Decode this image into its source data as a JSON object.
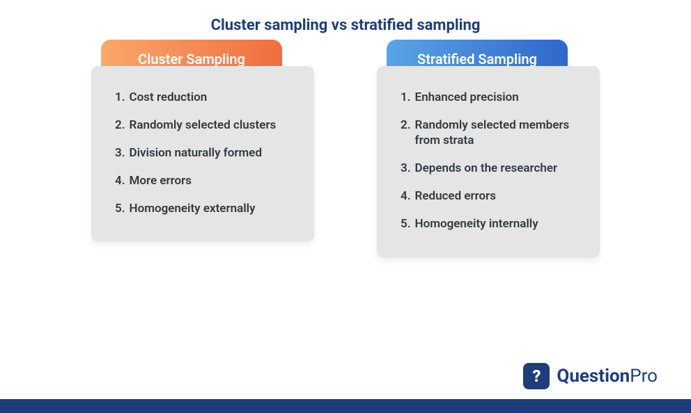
{
  "title": {
    "text": "Cluster sampling vs stratified sampling",
    "color": "#1f3d7a",
    "fontsize": 22
  },
  "page_bg": "#ffffff",
  "footer_bar_color": "#1f3d7a",
  "cards": [
    {
      "header": "Cluster Sampling",
      "tab_gradient_from": "#f9a86a",
      "tab_gradient_to": "#ef6e3f",
      "tab_text_color": "#ffffff",
      "body_bg": "#e5e5e5",
      "text_color": "#2f3a3f",
      "items": [
        "Cost reduction",
        "Randomly selected clusters",
        "Division naturally formed",
        "More errors",
        "Homogeneity externally"
      ]
    },
    {
      "header": "Stratified Sampling",
      "tab_gradient_from": "#5aa4e6",
      "tab_gradient_to": "#2f67c9",
      "tab_text_color": "#ffffff",
      "body_bg": "#e5e5e5",
      "text_color": "#2f3a3f",
      "items": [
        "Enhanced precision",
        "Randomly selected members from strata",
        "Depends on the researcher",
        "Reduced errors",
        "Homogeneity internally"
      ]
    }
  ],
  "logo": {
    "mark_bg": "#1f3d7a",
    "mark_glyph": "?",
    "text_bold": "Question",
    "text_light": "Pro",
    "text_color": "#1f3d7a"
  }
}
